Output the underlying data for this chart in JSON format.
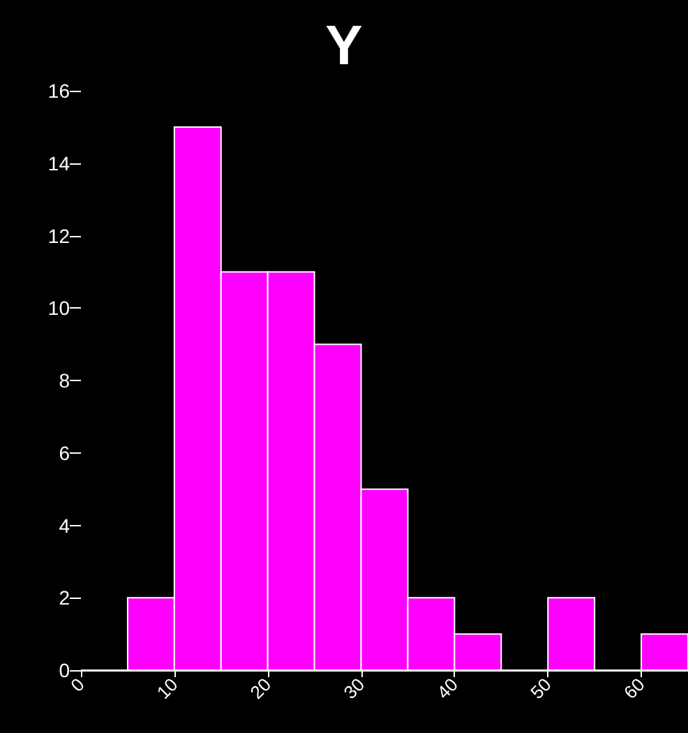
{
  "chart_data": {
    "type": "histogram",
    "title": "Y",
    "bins": [
      0,
      5,
      10,
      15,
      20,
      25,
      30,
      35,
      40,
      45,
      50,
      55,
      60,
      65
    ],
    "values": [
      0,
      2,
      15,
      11,
      11,
      9,
      5,
      2,
      1,
      0,
      2,
      0,
      1
    ],
    "color": "#ff00ff",
    "xlim": [
      0,
      65
    ],
    "xticks": [
      0,
      10,
      20,
      30,
      40,
      50,
      60
    ],
    "ylim": [
      0,
      16
    ],
    "yticks": [
      0,
      2,
      4,
      6,
      8,
      10,
      12,
      14,
      16
    ]
  }
}
